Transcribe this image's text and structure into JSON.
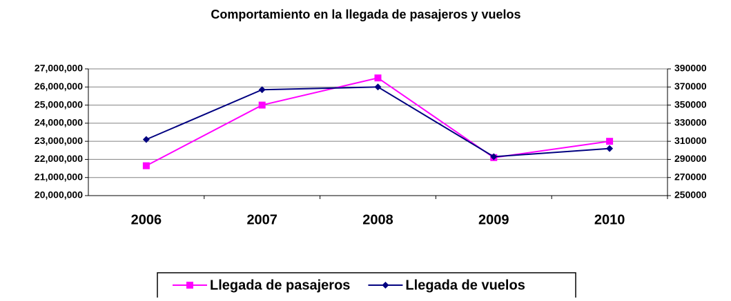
{
  "chart_data": {
    "type": "line",
    "title": "Comportamiento en la llegada de  pasajeros y vuelos",
    "categories": [
      "2006",
      "2007",
      "2008",
      "2009",
      "2010"
    ],
    "series": [
      {
        "name": "Llegada de pasajeros",
        "color": "#ff00ff",
        "marker": "square",
        "values": [
          21650000,
          25000000,
          26500000,
          22100000,
          23000000
        ]
      },
      {
        "name": "Llegada de vuelos",
        "color": "#000080",
        "marker": "diamond",
        "axis": "y2",
        "values": [
          312000,
          367000,
          370000,
          293000,
          302000
        ]
      }
    ],
    "ylim": [
      20000000,
      27000000
    ],
    "yticks": [
      {
        "value": 20000000,
        "label": "20,000,000"
      },
      {
        "value": 21000000,
        "label": "21,000,000"
      },
      {
        "value": 22000000,
        "label": "22,000,000"
      },
      {
        "value": 23000000,
        "label": "23,000,000"
      },
      {
        "value": 24000000,
        "label": "24,000,000"
      },
      {
        "value": 25000000,
        "label": "25,000,000"
      },
      {
        "value": 26000000,
        "label": "26,000,000"
      },
      {
        "value": 27000000,
        "label": "27,000,000"
      }
    ],
    "y2lim": [
      250000,
      390000
    ],
    "y2ticks": [
      250000,
      270000,
      290000,
      310000,
      330000,
      350000,
      370000,
      390000
    ],
    "grid": true,
    "legend": "bottom"
  }
}
